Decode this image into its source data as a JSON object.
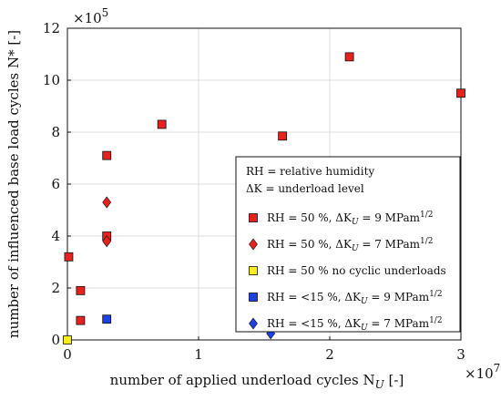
{
  "chart_data": {
    "type": "scatter",
    "xlabel": "number of applied underload cycles N",
    "xlabel_sub": "U",
    "xlabel_unit": " [-]",
    "ylabel": "number of influenced base load cycles N* [-]",
    "x_multiplier": "×10",
    "x_multiplier_exp": "7",
    "y_multiplier": "×10",
    "y_multiplier_exp": "5",
    "xlim": [
      0,
      3
    ],
    "ylim": [
      0,
      12
    ],
    "x_ticks": [
      "0",
      "1",
      "2",
      "3"
    ],
    "y_ticks": [
      "0",
      "2",
      "4",
      "6",
      "8",
      "10",
      "12"
    ],
    "grid": true,
    "legend_position": "bottom-right",
    "legend_header": [
      "RH = relative humidity",
      "ΔK = underload level"
    ],
    "series": [
      {
        "name": "RH = 50 %, ΔK = 9 MPam",
        "marker": "square",
        "color": "#e8201e",
        "points": [
          [
            0.01,
            3.2
          ],
          [
            0.1,
            1.9
          ],
          [
            0.1,
            0.75
          ],
          [
            0.3,
            7.1
          ],
          [
            0.3,
            4.0
          ],
          [
            0.72,
            8.3
          ],
          [
            1.64,
            7.85
          ],
          [
            2.15,
            10.9
          ],
          [
            3.0,
            9.5
          ]
        ]
      },
      {
        "name": "RH = 50 %, ΔK = 7 MPam",
        "marker": "diamond",
        "color": "#e8201e",
        "points": [
          [
            0.3,
            5.3
          ],
          [
            0.3,
            3.8
          ]
        ]
      },
      {
        "name": "RH = 50 % no cyclic underloads",
        "marker": "square",
        "color": "#f5ee1a",
        "points": [
          [
            0.0,
            0.0
          ]
        ]
      },
      {
        "name": "RH = <15 %, ΔK = 9 MPam",
        "marker": "square",
        "color": "#1f3fe0",
        "points": [
          [
            0.3,
            0.8
          ]
        ]
      },
      {
        "name": "RH = <15 %, ΔK = 7 MPam",
        "marker": "diamond",
        "color": "#1f3fe0",
        "points": [
          [
            1.55,
            0.25
          ]
        ]
      }
    ]
  }
}
